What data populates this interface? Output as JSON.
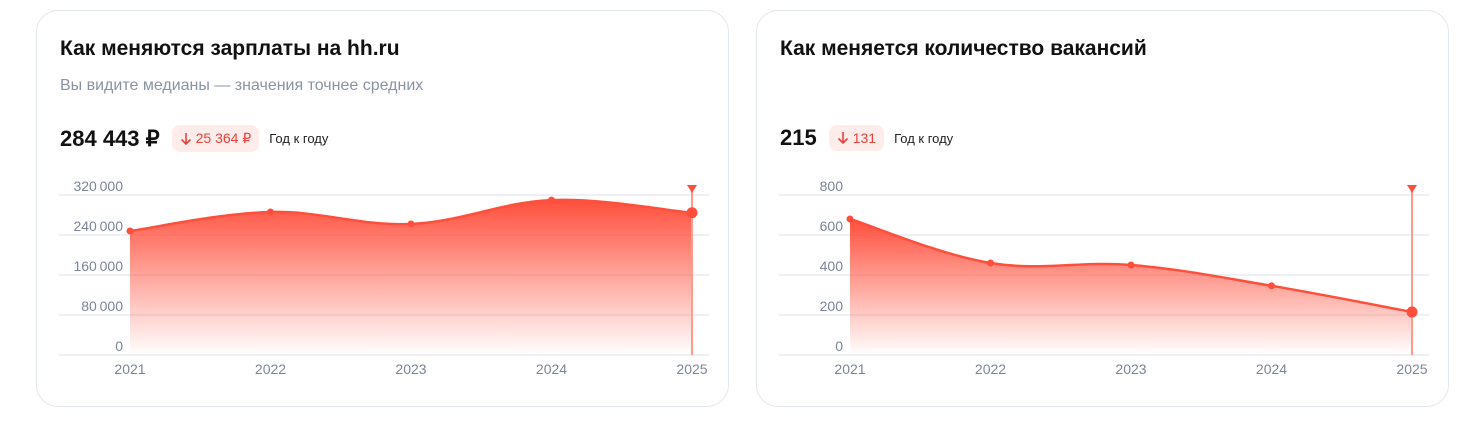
{
  "salary_card": {
    "title": "Как меняются зарплаты на hh.ru",
    "subtitle": "Вы видите медианы — значения точнее средних",
    "current_value": "284 443 ₽",
    "change": "25 364 ₽",
    "change_icon": "arrow-down-icon",
    "change_period": "Год к году"
  },
  "vacancies_card": {
    "title": "Как меняется количество вакансий",
    "current_value": "215",
    "change": "131",
    "change_icon": "arrow-down-icon",
    "change_period": "Год к году"
  },
  "colors": {
    "accent": "#ff4f3c",
    "badge_bg": "#fdecea",
    "badge_text": "#e8433a",
    "grid": "#e8ecf2",
    "tick": "#7b8597"
  },
  "chart_data": [
    {
      "type": "area",
      "title": "Как меняются зарплаты на hh.ru",
      "categories": [
        "2021",
        "2022",
        "2023",
        "2024",
        "2025"
      ],
      "values": [
        248000,
        286000,
        262000,
        309807,
        284443
      ],
      "yticks": [
        "0",
        "80000",
        "160000",
        "240000",
        "320000"
      ],
      "ylim": [
        0,
        320000
      ],
      "highlighted": "2025",
      "grid": true
    },
    {
      "type": "area",
      "title": "Как меняется количество вакансий",
      "categories": [
        "2021",
        "2022",
        "2023",
        "2024",
        "2025"
      ],
      "values": [
        680,
        460,
        450,
        346,
        215
      ],
      "yticks": [
        "0",
        "200",
        "400",
        "600",
        "800"
      ],
      "ylim": [
        0,
        800
      ],
      "highlighted": "2025",
      "grid": true
    }
  ]
}
